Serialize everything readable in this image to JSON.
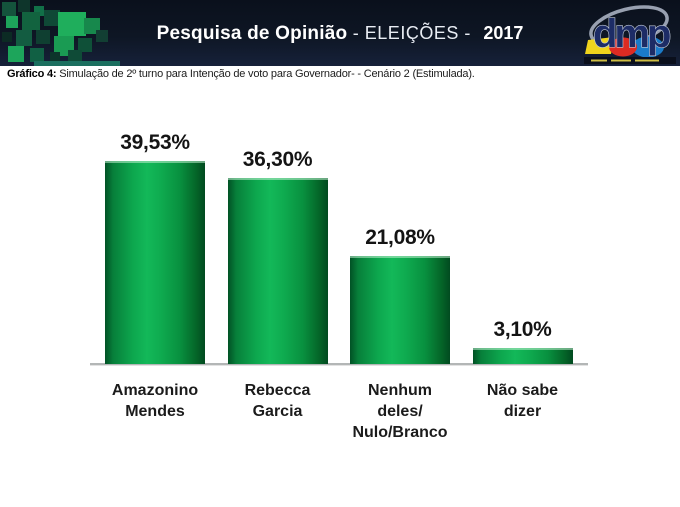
{
  "header": {
    "title_bold": "Pesquisa de Opinião",
    "title_mid": " - ELEIÇÕES - ",
    "title_year": "2017",
    "logo_text": "dmp",
    "bg_color": "#0e1624"
  },
  "subtitle": {
    "prefix": "Gráfico 4:",
    "text": " Simulação de 2º turno para Intenção de voto para Governador- - Cenário 2 (Estimulada)."
  },
  "chart_data": {
    "type": "bar",
    "title": "Pesquisa de Opinião - ELEIÇÕES - 2017",
    "categories": [
      "Amazonino Mendes",
      "Rebecca Garcia",
      "Nenhum deles/ Nulo/Branco",
      "Não sabe dizer"
    ],
    "category_lines": [
      [
        "Amazonino",
        "Mendes"
      ],
      [
        "Rebecca",
        "Garcia"
      ],
      [
        "Nenhum",
        "deles/",
        "Nulo/Branco"
      ],
      [
        "Não sabe",
        "dizer"
      ]
    ],
    "values": [
      39.53,
      36.3,
      21.08,
      3.1
    ],
    "value_labels": [
      "39,53%",
      "36,30%",
      "21,08%",
      "3,10%"
    ],
    "xlabel": "",
    "ylabel": "",
    "ylim": [
      0,
      42
    ],
    "grid": false,
    "legend": false,
    "decimal_separator": ",",
    "colors": {
      "bar_green_center": "#13b859",
      "bar_green_edge": "#015125",
      "baseline": "#b3b6b6",
      "header_bg": "#0e1624",
      "logo_navy": "#1d2c66",
      "logo_yellow": "#f0d41c",
      "logo_red": "#dd2b23",
      "logo_blue": "#1a7bc9"
    }
  }
}
